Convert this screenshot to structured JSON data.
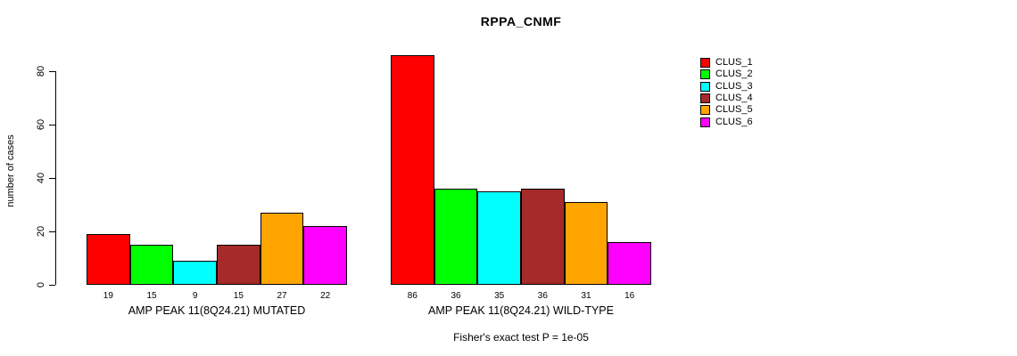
{
  "title": "RPPA_CNMF",
  "y_axis": {
    "label": "number of cases"
  },
  "footer": {
    "subtitle": "Fisher's exact test P = 1e-05"
  },
  "chart_data": {
    "type": "bar",
    "title": "RPPA_CNMF",
    "ylabel": "number of cases",
    "xlabel": "",
    "ylim": [
      0,
      86
    ],
    "yticks": [
      0,
      20,
      40,
      60,
      80
    ],
    "grid": false,
    "legend_position": "right",
    "legend": [
      "CLUS_1",
      "CLUS_2",
      "CLUS_3",
      "CLUS_4",
      "CLUS_5",
      "CLUS_6"
    ],
    "series_colors": [
      "#FF0000",
      "#00FF00",
      "#00FFFF",
      "#A52A2A",
      "#FFA500",
      "#FF00FF"
    ],
    "groups": [
      {
        "label": "AMP PEAK 11(8Q24.21) MUTATED",
        "values": [
          19,
          15,
          9,
          15,
          27,
          22
        ]
      },
      {
        "label": "AMP PEAK 11(8Q24.21) WILD-TYPE",
        "values": [
          86,
          36,
          35,
          36,
          31,
          16
        ]
      }
    ],
    "annotation": "Fisher's exact test P = 1e-05"
  }
}
